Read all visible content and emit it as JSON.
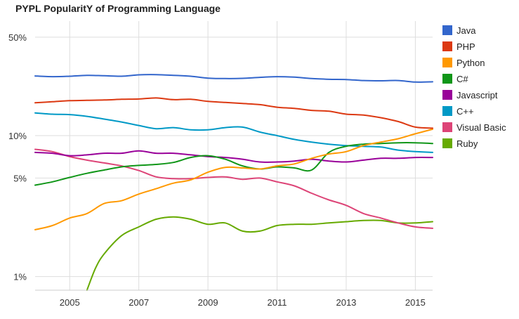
{
  "chart_data": {
    "type": "line",
    "title": "PYPL PopularitY of Programming Language",
    "xlabel": "",
    "ylabel": "",
    "y_scale": "log",
    "y_unit": "%",
    "xlim": [
      2004.0,
      2015.5
    ],
    "ylim": [
      0.8,
      65
    ],
    "grid": true,
    "legend_position": "right",
    "x_ticks": [
      {
        "value": 2005,
        "label": "2005"
      },
      {
        "value": 2007,
        "label": "2007"
      },
      {
        "value": 2009,
        "label": "2009"
      },
      {
        "value": 2011,
        "label": "2011"
      },
      {
        "value": 2013,
        "label": "2013"
      },
      {
        "value": 2015,
        "label": "2015"
      }
    ],
    "y_ticks": [
      {
        "value": 50,
        "label": "50%"
      },
      {
        "value": 10,
        "label": "10%"
      },
      {
        "value": 5,
        "label": "5%"
      },
      {
        "value": 1,
        "label": "1%"
      }
    ],
    "series": [
      {
        "name": "Java",
        "color": "#3366cc",
        "x": [
          2004.0,
          2004.5,
          2005.0,
          2005.5,
          2006.0,
          2006.5,
          2007.0,
          2007.5,
          2008.0,
          2008.5,
          2009.0,
          2009.5,
          2010.0,
          2010.5,
          2011.0,
          2011.5,
          2012.0,
          2012.5,
          2013.0,
          2013.5,
          2014.0,
          2014.5,
          2015.0,
          2015.5
        ],
        "y": [
          26.5,
          26.2,
          26.4,
          26.8,
          26.6,
          26.4,
          27.0,
          27.1,
          26.8,
          26.4,
          25.6,
          25.4,
          25.5,
          25.9,
          26.2,
          26.0,
          25.4,
          25.1,
          25.0,
          24.6,
          24.5,
          24.6,
          24.0,
          24.1
        ]
      },
      {
        "name": "PHP",
        "color": "#dc3912",
        "x": [
          2004.0,
          2004.5,
          2005.0,
          2005.5,
          2006.0,
          2006.5,
          2007.0,
          2007.5,
          2008.0,
          2008.5,
          2009.0,
          2009.5,
          2010.0,
          2010.5,
          2011.0,
          2011.5,
          2012.0,
          2012.5,
          2013.0,
          2013.5,
          2014.0,
          2014.5,
          2015.0,
          2015.5
        ],
        "y": [
          17.1,
          17.4,
          17.7,
          17.8,
          17.9,
          18.1,
          18.2,
          18.5,
          18.0,
          18.1,
          17.5,
          17.2,
          16.9,
          16.6,
          15.9,
          15.6,
          15.1,
          14.9,
          14.2,
          14.0,
          13.4,
          12.6,
          11.5,
          11.3
        ]
      },
      {
        "name": "Python",
        "color": "#ff9900",
        "x": [
          2004.0,
          2004.5,
          2005.0,
          2005.5,
          2006.0,
          2006.5,
          2007.0,
          2007.5,
          2008.0,
          2008.5,
          2009.0,
          2009.5,
          2010.0,
          2010.5,
          2011.0,
          2011.5,
          2012.0,
          2012.5,
          2013.0,
          2013.5,
          2014.0,
          2014.5,
          2015.0,
          2015.5
        ],
        "y": [
          2.15,
          2.3,
          2.6,
          2.8,
          3.3,
          3.45,
          3.85,
          4.2,
          4.6,
          4.85,
          5.5,
          5.95,
          5.9,
          5.8,
          6.1,
          6.3,
          6.9,
          7.4,
          7.7,
          8.5,
          9.0,
          9.5,
          10.3,
          11.1
        ]
      },
      {
        "name": "C#",
        "color": "#109618",
        "x": [
          2004.0,
          2004.5,
          2005.0,
          2005.5,
          2006.0,
          2006.5,
          2007.0,
          2007.5,
          2008.0,
          2008.5,
          2009.0,
          2009.5,
          2010.0,
          2010.5,
          2011.0,
          2011.5,
          2012.0,
          2012.5,
          2013.0,
          2013.5,
          2014.0,
          2014.5,
          2015.0,
          2015.5
        ],
        "y": [
          4.45,
          4.7,
          5.05,
          5.4,
          5.7,
          6.0,
          6.15,
          6.25,
          6.45,
          7.0,
          7.2,
          6.8,
          6.1,
          5.8,
          6.0,
          5.9,
          5.7,
          7.6,
          8.4,
          8.7,
          8.8,
          8.9,
          8.9,
          8.8
        ]
      },
      {
        "name": "Javascript",
        "color": "#990099",
        "x": [
          2004.0,
          2004.5,
          2005.0,
          2005.5,
          2006.0,
          2006.5,
          2007.0,
          2007.5,
          2008.0,
          2008.5,
          2009.0,
          2009.5,
          2010.0,
          2010.5,
          2011.0,
          2011.5,
          2012.0,
          2012.5,
          2013.0,
          2013.5,
          2014.0,
          2014.5,
          2015.0,
          2015.5
        ],
        "y": [
          7.6,
          7.5,
          7.2,
          7.3,
          7.5,
          7.5,
          7.8,
          7.5,
          7.5,
          7.3,
          7.1,
          7.0,
          6.8,
          6.5,
          6.5,
          6.6,
          6.8,
          6.6,
          6.5,
          6.7,
          6.9,
          6.9,
          7.0,
          7.0
        ]
      },
      {
        "name": "C++",
        "color": "#0099c6",
        "x": [
          2004.0,
          2004.5,
          2005.0,
          2005.5,
          2006.0,
          2006.5,
          2007.0,
          2007.5,
          2008.0,
          2008.5,
          2009.0,
          2009.5,
          2010.0,
          2010.5,
          2011.0,
          2011.5,
          2012.0,
          2012.5,
          2013.0,
          2013.5,
          2014.0,
          2014.5,
          2015.0,
          2015.5
        ],
        "y": [
          14.5,
          14.2,
          14.1,
          13.7,
          13.1,
          12.5,
          11.8,
          11.2,
          11.4,
          11.0,
          11.0,
          11.4,
          11.5,
          10.6,
          10.0,
          9.4,
          9.0,
          8.7,
          8.5,
          8.4,
          8.3,
          7.9,
          7.7,
          7.6
        ]
      },
      {
        "name": "Visual Basic",
        "color": "#dd4477",
        "x": [
          2004.0,
          2004.5,
          2005.0,
          2005.5,
          2006.0,
          2006.5,
          2007.0,
          2007.5,
          2008.0,
          2008.5,
          2009.0,
          2009.5,
          2010.0,
          2010.5,
          2011.0,
          2011.5,
          2012.0,
          2012.5,
          2013.0,
          2013.5,
          2014.0,
          2014.5,
          2015.0,
          2015.5
        ],
        "y": [
          8.0,
          7.7,
          7.1,
          6.7,
          6.4,
          6.1,
          5.65,
          5.1,
          4.95,
          4.95,
          5.05,
          5.1,
          4.9,
          5.0,
          4.7,
          4.4,
          3.9,
          3.5,
          3.2,
          2.8,
          2.6,
          2.4,
          2.25,
          2.2
        ]
      },
      {
        "name": "Ruby",
        "color": "#66aa00",
        "x": [
          2005.5,
          2005.75,
          2006.0,
          2006.5,
          2007.0,
          2007.5,
          2008.0,
          2008.5,
          2009.0,
          2009.5,
          2010.0,
          2010.5,
          2011.0,
          2011.5,
          2012.0,
          2012.5,
          2013.0,
          2013.5,
          2014.0,
          2014.5,
          2015.0,
          2015.5
        ],
        "y": [
          0.8,
          1.15,
          1.45,
          1.95,
          2.25,
          2.55,
          2.65,
          2.55,
          2.35,
          2.4,
          2.1,
          2.1,
          2.3,
          2.35,
          2.35,
          2.4,
          2.45,
          2.5,
          2.5,
          2.4,
          2.4,
          2.45
        ]
      }
    ]
  }
}
